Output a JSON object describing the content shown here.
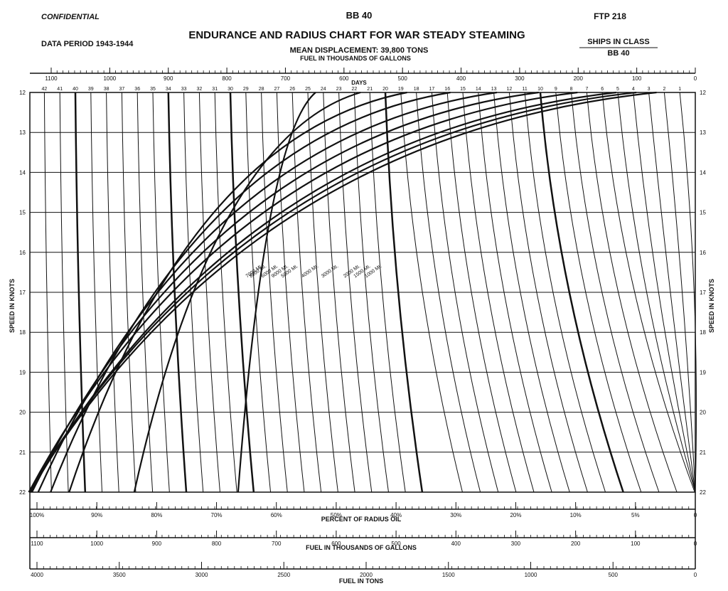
{
  "header": {
    "confidential": "CONFIDENTIAL",
    "ship": "BB 40",
    "ftp": "FTP 218",
    "title": "ENDURANCE AND RADIUS CHART FOR WAR STEADY STEAMING",
    "data_period": "DATA PERIOD 1943-1944",
    "mean_displacement": "MEAN DISPLACEMENT: 39,800 TONS",
    "fuel_top_label": "FUEL IN THOUSANDS OF GALLONS",
    "ships_in_class_label": "SHIPS IN CLASS",
    "ships_in_class_value": "BB 40"
  },
  "chart_data": {
    "type": "line",
    "title": "ENDURANCE AND RADIUS CHART FOR WAR STEADY STEAMING",
    "ylabel": "SPEED IN KNOTS",
    "ylim": [
      12,
      22
    ],
    "y_ticks": [
      "12",
      "13",
      "14",
      "15",
      "16",
      "17",
      "18",
      "19",
      "20",
      "21",
      "22"
    ],
    "xlabel": "DAYS",
    "xlim": [
      43,
      0
    ],
    "days_ticks": [
      "1",
      "2",
      "3",
      "4",
      "5",
      "6",
      "7",
      "8",
      "9",
      "10",
      "11",
      "12",
      "13",
      "14",
      "15",
      "16",
      "17",
      "18",
      "19",
      "20",
      "21",
      "22",
      "23",
      "24",
      "25",
      "26",
      "27",
      "28",
      "29",
      "30",
      "31",
      "32",
      "33",
      "34",
      "35",
      "36",
      "37",
      "38",
      "39",
      "40",
      "41",
      "42"
    ],
    "fuel_gallons_ticks": [
      "1100",
      "1000",
      "900",
      "800",
      "700",
      "600",
      "500",
      "400",
      "300",
      "200",
      "100",
      "0"
    ],
    "fuel_gallons_label": "FUEL IN THOUSANDS OF GALLONS",
    "percent_ticks": [
      "100%",
      "90%",
      "80%",
      "70%",
      "60%",
      "50%",
      "40%",
      "30%",
      "20%",
      "10%",
      "5%",
      "0"
    ],
    "percent_label": "PERCENT OF RADIUS OIL",
    "fuel_tons_ticks": [
      "4000",
      "3500",
      "3000",
      "2500",
      "2000",
      "1500",
      "1000",
      "500",
      "0"
    ],
    "fuel_tons_label": "FUEL IN TONS",
    "radius_curves": [
      {
        "label": "9000 MI.",
        "miles": 9000,
        "days": [
          29.5,
          24.5
        ]
      },
      {
        "label": "8000 MI.",
        "miles": 8000,
        "days": [
          36.2,
          21.6
        ]
      },
      {
        "label": "7000 MI.",
        "miles": 7000,
        "days": [
          40.4,
          18.6
        ]
      },
      {
        "label": "6000 MI.",
        "miles": 6000,
        "days": [
          41.6,
          15.8
        ]
      },
      {
        "label": "5000 MI.",
        "miles": 5000,
        "days": [
          42.4,
          12.8
        ]
      },
      {
        "label": "4000 MI.",
        "miles": 4000,
        "days": [
          42.8,
          10.1
        ]
      },
      {
        "label": "3000 MI.",
        "miles": 3000,
        "days": [
          43.0,
          7.6
        ]
      },
      {
        "label": "2000 MI.",
        "miles": 2000,
        "days": [
          42.9,
          5.1
        ]
      },
      {
        "label": "1000 MI.",
        "miles": 1000,
        "days": [
          43.0,
          2.5
        ]
      },
      {
        "label": "1500 MI.",
        "miles": 1500,
        "days": [
          43.0,
          3.8
        ]
      }
    ],
    "speed_labels": [
      "2000 MI.",
      "1500 MI.",
      "1000 MI.",
      "1500 MI."
    ]
  }
}
